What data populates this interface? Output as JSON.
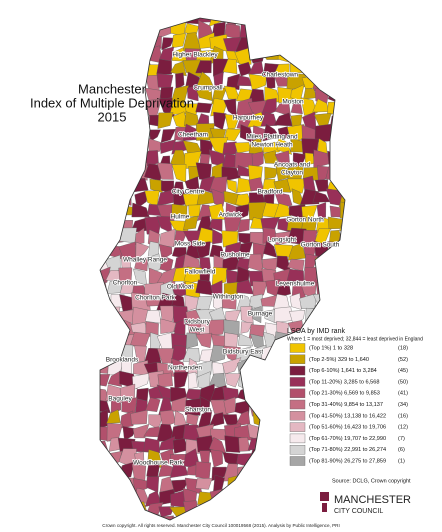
{
  "title": [
    "Manchester",
    "Index of Multiple Deprivation",
    "2015"
  ],
  "wards": [
    "Higher Blackley",
    "Crumpsall",
    "Charlestown",
    "Moston",
    "Harpurhey",
    "Cheetham",
    "Miles Platting and",
    "Newton Heath",
    "Ancoats and",
    "Clayton",
    "Bradford",
    "City Centre",
    "Hulme",
    "Ardwick",
    "Gorton North",
    "Gorton South",
    "Longsight",
    "Moss Side",
    "Whalley Range",
    "Rusholme",
    "Levenshulme",
    "Fallowfield",
    "Chorlton",
    "Chorlton Park",
    "Old Moat",
    "Withington",
    "Burnage",
    "Didsbury",
    "West",
    "Didsbury East",
    "Northenden",
    "Brooklands",
    "Baguley",
    "Sharston",
    "Woodhouse Park"
  ],
  "legend": {
    "title": "LSOA by IMD rank",
    "subtitle": "Where 1 = most deprived; 32,844 = least deprived in England",
    "items": [
      {
        "label": "(Top 1%) 1 to 328",
        "count": "(18)",
        "color": "#f0c400"
      },
      {
        "label": "(Top 2-5%) 329 to 1,640",
        "count": "(52)",
        "color": "#c9a200"
      },
      {
        "label": "(Top 6-10%) 1,641 to 3,284",
        "count": "(45)",
        "color": "#7b1d3f"
      },
      {
        "label": "(Top 11-20%) 3,285 to 6,568",
        "count": "(50)",
        "color": "#983058"
      },
      {
        "label": "(Top 21-30%) 6,569 to 9,853",
        "count": "(41)",
        "color": "#b2506c"
      },
      {
        "label": "(Top 31-40%) 9,854 to 13,137",
        "count": "(34)",
        "color": "#c46f83"
      },
      {
        "label": "(Top 41-50%) 13,138 to 16,422",
        "count": "(16)",
        "color": "#d4909f"
      },
      {
        "label": "(Top 51-60%) 16,423 to 19,706",
        "count": "(12)",
        "color": "#e4b8c2"
      },
      {
        "label": "(Top 61-70%) 19,707 to 22,990",
        "count": "(7)",
        "color": "#f6eaed"
      },
      {
        "label": "(Top 71-80%) 22,991 to 26,274",
        "count": "(6)",
        "color": "#d4d4d4"
      },
      {
        "label": "(Top 81-90%) 26,275 to 27,859",
        "count": "(1)",
        "color": "#a6a6a6"
      }
    ]
  },
  "source": "Source: DCLG, Crown copyright",
  "logo": [
    "MANCHESTER",
    "CITY COUNCIL"
  ],
  "footer": "Crown copyright. All rights reserved. Manchester City Council 100019568 (2015). Analysis by Public Intelligence, PRI"
}
